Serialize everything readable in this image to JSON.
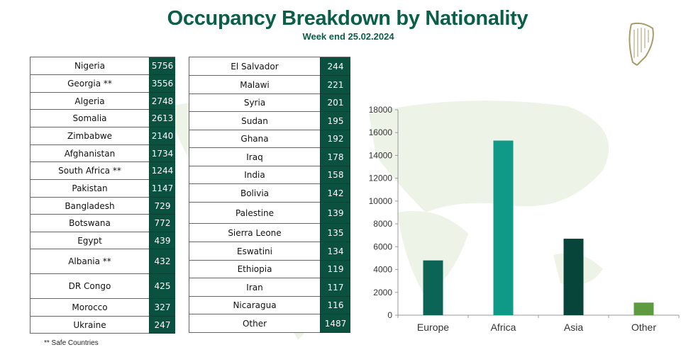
{
  "header": {
    "title": "Occupancy Breakdown by Nationality",
    "subtitle": "Week end 25.02.2024",
    "logo": "harp-icon"
  },
  "table_left": [
    {
      "country": "Nigeria",
      "count": "5756"
    },
    {
      "country": "Georgia **",
      "count": "3556"
    },
    {
      "country": "Algeria",
      "count": "2748"
    },
    {
      "country": "Somalia",
      "count": "2613"
    },
    {
      "country": "Zimbabwe",
      "count": "2140"
    },
    {
      "country": "Afghanistan",
      "count": "1734"
    },
    {
      "country": "South Africa **",
      "count": "1244"
    },
    {
      "country": "Pakistan",
      "count": "1147"
    },
    {
      "country": "Bangladesh",
      "count": "729"
    },
    {
      "country": "Botswana",
      "count": "772"
    },
    {
      "country": "Egypt",
      "count": "439"
    },
    {
      "country": "Albania **",
      "count": "432"
    },
    {
      "country": "DR Congo",
      "count": "425"
    },
    {
      "country": "Morocco",
      "count": "327"
    },
    {
      "country": "Ukraine",
      "count": "247"
    }
  ],
  "table_right": [
    {
      "country": "El Salvador",
      "count": "244"
    },
    {
      "country": "Malawi",
      "count": "221"
    },
    {
      "country": "Syria",
      "count": "201"
    },
    {
      "country": "Sudan",
      "count": "195"
    },
    {
      "country": "Ghana",
      "count": "192"
    },
    {
      "country": "Iraq",
      "count": "178"
    },
    {
      "country": "India",
      "count": "158"
    },
    {
      "country": "Bolivia",
      "count": "142"
    },
    {
      "country": "Palestine",
      "count": "139"
    },
    {
      "country": "Sierra Leone",
      "count": "135"
    },
    {
      "country": "Eswatini",
      "count": "134"
    },
    {
      "country": "Ethiopia",
      "count": "119"
    },
    {
      "country": "Iran",
      "count": "117"
    },
    {
      "country": "Nicaragua",
      "count": "116"
    },
    {
      "country": "Other",
      "count": "1487"
    }
  ],
  "footnote": "** Safe Countries",
  "chart_data": {
    "type": "bar",
    "categories": [
      "Europe",
      "Africa",
      "Asia",
      "Other"
    ],
    "values": [
      4800,
      15300,
      6700,
      1100
    ],
    "colors": [
      "#0b6455",
      "#0e9a87",
      "#07443a",
      "#5e9b40"
    ],
    "ylim": [
      0,
      18000
    ],
    "yticks": [
      "0",
      "2000",
      "4000",
      "6000",
      "8000",
      "10000",
      "12000",
      "14000",
      "16000",
      "18000"
    ],
    "grid": false,
    "title": "",
    "xlabel": "",
    "ylabel": ""
  }
}
